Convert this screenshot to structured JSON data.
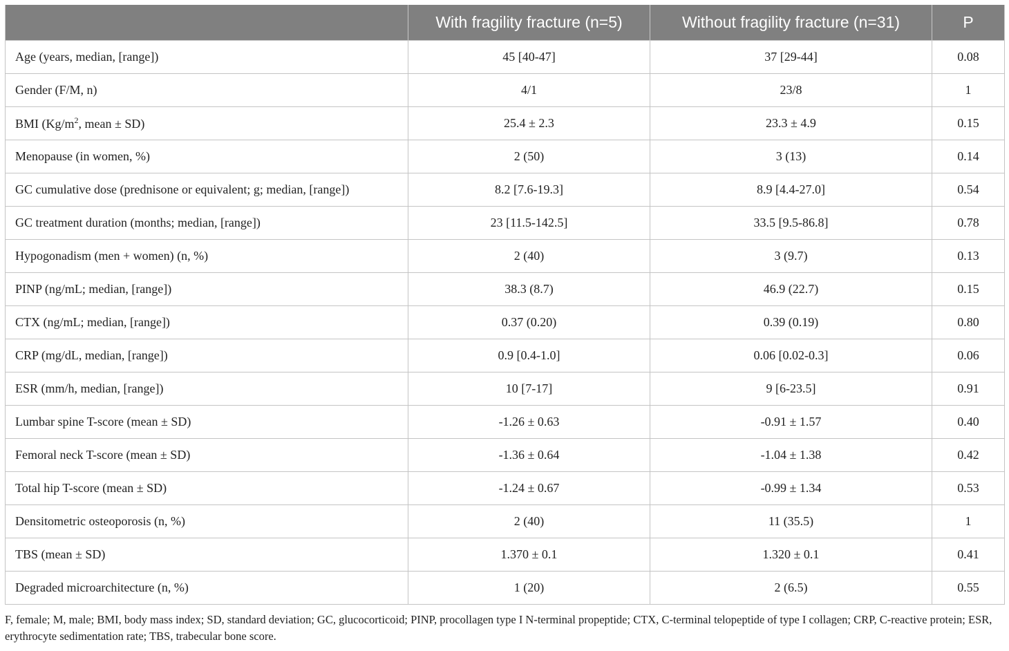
{
  "table": {
    "headers": [
      "",
      "With fragility fracture (n=5)",
      "Without fragility fracture (n=31)",
      "P"
    ],
    "rows": [
      {
        "label": "Age (years, median, [range])",
        "with": "45 [40-47]",
        "without": "37 [29-44]",
        "p": "0.08"
      },
      {
        "label": "Gender (F/M, n)",
        "with": "4/1",
        "without": "23/8",
        "p": "1"
      },
      {
        "label": "BMI (Kg/m",
        "label_sup": "2",
        "label_rest": ", mean ± SD)",
        "with": "25.4 ± 2.3",
        "without": "23.3 ± 4.9",
        "p": "0.15"
      },
      {
        "label": "Menopause (in women, %)",
        "with": "2 (50)",
        "without": "3 (13)",
        "p": "0.14"
      },
      {
        "label": "GC cumulative dose (prednisone or equivalent; g; median, [range])",
        "with": "8.2 [7.6-19.3]",
        "without": "8.9 [4.4-27.0]",
        "p": "0.54"
      },
      {
        "label": "GC treatment duration (months; median, [range])",
        "with": "23 [11.5-142.5]",
        "without": "33.5 [9.5-86.8]",
        "p": "0.78"
      },
      {
        "label": "Hypogonadism (men + women) (n, %)",
        "with": "2 (40)",
        "without": "3 (9.7)",
        "p": "0.13"
      },
      {
        "label": "PINP (ng/mL; median, [range])",
        "with": "38.3 (8.7)",
        "without": "46.9 (22.7)",
        "p": "0.15"
      },
      {
        "label": "CTX (ng/mL; median, [range])",
        "with": "0.37 (0.20)",
        "without": "0.39 (0.19)",
        "p": "0.80"
      },
      {
        "label": "CRP (mg/dL, median, [range])",
        "with": "0.9 [0.4-1.0]",
        "without": "0.06 [0.02-0.3]",
        "p": "0.06"
      },
      {
        "label": "ESR (mm/h, median, [range])",
        "with": "10 [7-17]",
        "without": "9 [6-23.5]",
        "p": "0.91"
      },
      {
        "label": "Lumbar spine T-score (mean ± SD)",
        "with": "-1.26 ± 0.63",
        "without": "-0.91 ± 1.57",
        "p": "0.40"
      },
      {
        "label": "Femoral neck T-score (mean ± SD)",
        "with": "-1.36 ± 0.64",
        "without": "-1.04 ± 1.38",
        "p": "0.42"
      },
      {
        "label": "Total hip T-score (mean ± SD)",
        "with": "-1.24 ± 0.67",
        "without": "-0.99 ± 1.34",
        "p": "0.53"
      },
      {
        "label": "Densitometric osteoporosis (n, %)",
        "with": "2 (40)",
        "without": "11 (35.5)",
        "p": "1"
      },
      {
        "label": "TBS (mean ± SD)",
        "with": "1.370 ± 0.1",
        "without": "1.320 ± 0.1",
        "p": "0.41"
      },
      {
        "label": "Degraded microarchitecture (n, %)",
        "with": "1 (20)",
        "without": "2 (6.5)",
        "p": "0.55"
      }
    ]
  },
  "footnote": "F, female; M, male; BMI, body mass index; SD, standard deviation; GC, glucocorticoid; PINP, procollagen type I N-terminal propeptide; CTX, C-terminal telopeptide of type I collagen; CRP, C-reactive protein; ESR, erythrocyte sedimentation rate; TBS, trabecular bone score."
}
